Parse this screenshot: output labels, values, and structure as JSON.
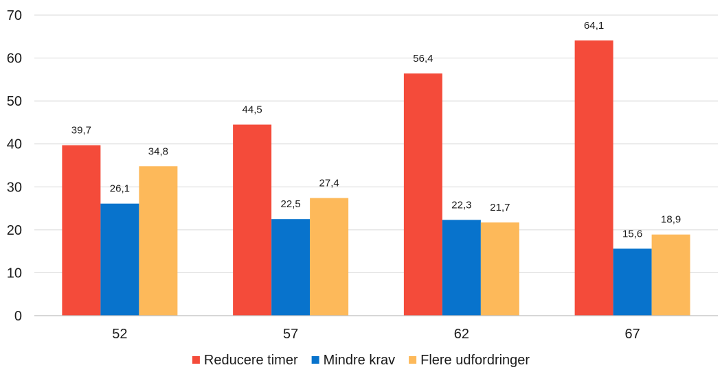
{
  "chart_data": {
    "type": "bar",
    "categories": [
      "52",
      "57",
      "62",
      "67"
    ],
    "series": [
      {
        "name": "Reducere timer",
        "color": "#f44b3a",
        "values": [
          39.7,
          44.5,
          56.4,
          64.1
        ],
        "labels": [
          "39,7",
          "44,5",
          "56,4",
          "64,1"
        ]
      },
      {
        "name": "Mindre krav",
        "color": "#0873cc",
        "values": [
          26.1,
          22.5,
          22.3,
          15.6
        ],
        "labels": [
          "26,1",
          "22,5",
          "22,3",
          "15,6"
        ]
      },
      {
        "name": "Flere udfordringer",
        "color": "#fdb95a",
        "values": [
          34.8,
          27.4,
          21.7,
          18.9
        ],
        "labels": [
          "34,8",
          "27,4",
          "21,7",
          "18,9"
        ]
      }
    ],
    "ylim": [
      0,
      70
    ],
    "yticks": [
      0,
      10,
      20,
      30,
      40,
      50,
      60,
      70
    ],
    "grid": true,
    "legend": "bottom"
  }
}
